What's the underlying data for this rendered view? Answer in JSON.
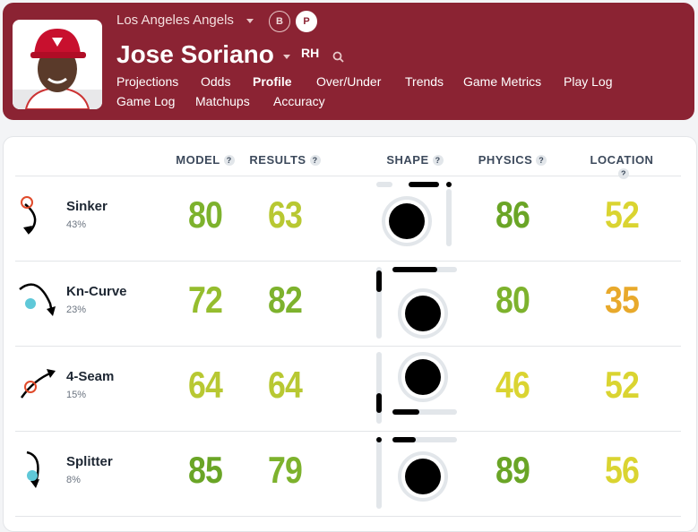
{
  "header": {
    "team": "Los Angeles Angels",
    "badges": [
      "B",
      "P"
    ],
    "player": "Jose Soriano",
    "hand": "RH",
    "nav": [
      "Projections",
      "Odds",
      "Profile",
      "Over/Under",
      "Trends",
      "Game Metrics",
      "Play Log",
      "Game Log",
      "Matchups",
      "Accuracy"
    ]
  },
  "table": {
    "columns": [
      "MODEL",
      "RESULTS",
      "SHAPE",
      "PHYSICS",
      "LOCATION"
    ],
    "help_icon": "?",
    "rows": [
      {
        "pitch": "Sinker",
        "usage": "43%",
        "model": 80,
        "results": 63,
        "physics": 86,
        "location": 52
      },
      {
        "pitch": "Kn-Curve",
        "usage": "23%",
        "model": 72,
        "results": 82,
        "physics": 80,
        "location": 35
      },
      {
        "pitch": "4-Seam",
        "usage": "15%",
        "model": 64,
        "results": 64,
        "physics": 46,
        "location": 52
      },
      {
        "pitch": "Splitter",
        "usage": "8%",
        "model": 85,
        "results": 79,
        "physics": 89,
        "location": 56
      }
    ]
  }
}
